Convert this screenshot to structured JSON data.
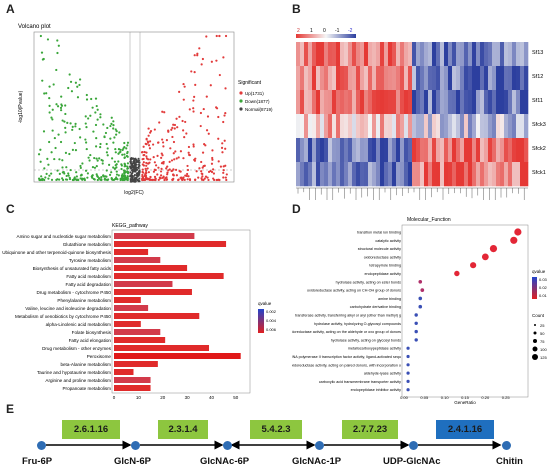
{
  "panels": {
    "A": "A",
    "B": "B",
    "C": "C",
    "D": "D",
    "E": "E"
  },
  "volcano": {
    "title": "Volcano plot",
    "xlabel": "log2(FC)",
    "ylabel": "-log10(Pvalue)",
    "legend_title": "Significant",
    "legend": [
      {
        "label": "Up(1731)",
        "color": "#e23b3b"
      },
      {
        "label": "Down(1877)",
        "color": "#3aa63a"
      },
      {
        "label": "Normal(8719)",
        "color": "#444444"
      }
    ]
  },
  "heatmap": {
    "scale_labels": [
      "2",
      "1",
      "0",
      "-1",
      "-2"
    ],
    "rows": [
      "Sf13",
      "Sf12",
      "Sf11",
      "Sfck3",
      "Sfck2",
      "Sfck1"
    ],
    "colors": {
      "high": "#e53935",
      "mid": "#f5f5f5",
      "low": "#2c3f9f"
    }
  },
  "chart_data": [
    {
      "type": "bar",
      "title": "KEGG_pathway",
      "categories": [
        "Amino sugar and nucleotide sugar metabolism",
        "Glutathione metabolism",
        "Ubiquinone and other terpenoid-quinone biosynthesis",
        "Tyrosine metabolism",
        "Biosynthesis of unsaturated fatty acids",
        "Fatty acid metabolism",
        "Fatty acid degradation",
        "Drug metabolism - cytochrome P450",
        "Phenylalanine metabolism",
        "Valine, leucine and isoleucine degradation",
        "Metabolism of xenobiotics by cytochrome P450",
        "alpha-Linolenic acid metabolism",
        "Folate biosynthesis",
        "Fatty acid elongation",
        "Drug metabolism - other enzymes",
        "Peroxisome",
        "beta-Alanine metabolism",
        "Taurine and hypotaurine metabolism",
        "Arginine and proline metabolism",
        "Propanoate metabolism"
      ],
      "values": [
        33,
        46,
        14,
        19,
        30,
        45,
        24,
        32,
        11,
        14,
        35,
        11,
        19,
        21,
        39,
        52,
        18,
        8,
        15,
        15
      ],
      "xlim": [
        0,
        55
      ],
      "xticks": [
        0,
        10,
        20,
        30,
        40,
        50
      ],
      "legend_title": "qvalue",
      "legend_ticks": [
        "0.002",
        "0.004",
        "0.006"
      ]
    },
    {
      "type": "scatter",
      "title": "Molecular_Function",
      "xlabel": "GeneRatio",
      "xlim": [
        0,
        0.3
      ],
      "xticks": [
        "0.00",
        "0.05",
        "0.10",
        "0.15",
        "0.20",
        "0.25"
      ],
      "categories": [
        "transition metal ion binding",
        "catalytic activity",
        "structural molecule activity",
        "oxidoreductase activity",
        "tetrapyrrole binding",
        "endopeptidase activity",
        "hydrolase activity, acting on ester bonds",
        "oxidoreductase activity, acting on CH-OH group of donors",
        "amine binding",
        "carbohydrate derivative binding",
        "transferase activity, transferring alkyl or aryl (other than methyl) groups",
        "hydrolase activity, hydrolyzing O-glycosyl compounds",
        "oxidoreductase activity, acting on the aldehyde or oxo group of donors, NAD or NADP as acceptor",
        "hydrolase activity, acting on glycosyl bonds",
        "metallocarboxypeptidase activity",
        "RNA polymerase II transcription factor activity, ligand-activated sequence-specific DNA binding",
        "oxidoreductase activity, acting on paired donors, with incorporation or reduction of molecular oxygen, NAD(P)H as one donor, and incorporation of one atom of oxygen",
        "aldehyde-lyase activity",
        "carboxylic acid transmembrane transporter activity",
        "endopeptidase inhibitor activity"
      ],
      "values": [
        0.28,
        0.27,
        0.22,
        0.2,
        0.17,
        0.13,
        0.04,
        0.045,
        0.04,
        0.04,
        0.03,
        0.03,
        0.03,
        0.03,
        0.01,
        0.01,
        0.01,
        0.01,
        0.01,
        0.01
      ],
      "legend_title": "qvalue",
      "legend_ticks": [
        "0.03",
        "0.02",
        "0.01"
      ],
      "size_title": "Count",
      "size_ticks": [
        "25",
        "50",
        "75",
        "100",
        "125"
      ]
    }
  ],
  "pathway": {
    "metabolites": [
      "Fru-6P",
      "GlcN-6P",
      "GlcNAc-6P",
      "GlcNAc-1P",
      "UDP-GlcNAc",
      "Chitin"
    ],
    "enzymes": [
      {
        "ec": "2.6.1.16",
        "color": "#8dc63f"
      },
      {
        "ec": "2.3.1.4",
        "color": "#8dc63f"
      },
      {
        "ec": "5.4.2.3",
        "color": "#8dc63f"
      },
      {
        "ec": "2.7.7.23",
        "color": "#8dc63f"
      },
      {
        "ec": "2.4.1.16",
        "color": "#1f6fbf"
      }
    ]
  }
}
